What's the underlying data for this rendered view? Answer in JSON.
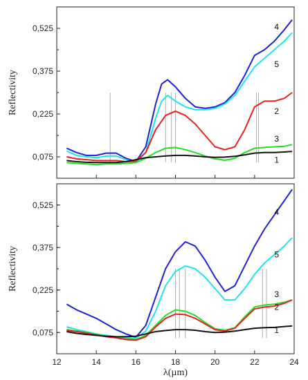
{
  "chart_data": [
    {
      "type": "line",
      "ylabel": "Reflectivity",
      "xlabel": "",
      "xlim": [
        12,
        24
      ],
      "ylim": [
        0,
        0.6
      ],
      "yticks": [
        "0,075",
        "0,225",
        "0,375",
        "0,525"
      ],
      "ytick_values": [
        0.075,
        0.225,
        0.375,
        0.525
      ],
      "xticks": [],
      "grid": false,
      "series": [
        {
          "name": "4",
          "color": "#1f1fd6",
          "x": [
            12.5,
            13,
            13.5,
            14,
            14.5,
            15,
            15.5,
            16,
            16.5,
            17,
            17.3,
            17.6,
            18,
            18.5,
            19,
            19.5,
            20,
            20.5,
            21,
            21.5,
            22,
            22.5,
            23,
            23.5,
            23.9
          ],
          "y": [
            0.105,
            0.09,
            0.08,
            0.08,
            0.088,
            0.088,
            0.07,
            0.058,
            0.11,
            0.26,
            0.33,
            0.345,
            0.32,
            0.28,
            0.25,
            0.245,
            0.25,
            0.265,
            0.3,
            0.36,
            0.43,
            0.45,
            0.48,
            0.52,
            0.555
          ]
        },
        {
          "name": "5",
          "color": "#1fe6e6",
          "x": [
            12.5,
            13,
            13.5,
            14,
            14.5,
            15,
            15.5,
            16,
            16.5,
            17,
            17.3,
            17.6,
            18,
            18.5,
            19,
            19.5,
            20,
            20.5,
            21,
            21.5,
            22,
            22.5,
            23,
            23.5,
            23.9
          ],
          "y": [
            0.095,
            0.08,
            0.075,
            0.072,
            0.078,
            0.078,
            0.065,
            0.055,
            0.09,
            0.21,
            0.27,
            0.29,
            0.27,
            0.25,
            0.24,
            0.24,
            0.245,
            0.26,
            0.29,
            0.34,
            0.39,
            0.42,
            0.45,
            0.48,
            0.51
          ]
        },
        {
          "name": "2",
          "color": "#e62020",
          "x": [
            12.5,
            13,
            13.5,
            14,
            14.5,
            15,
            15.5,
            16,
            16.5,
            17,
            17.5,
            18,
            18.5,
            19,
            19.5,
            20,
            20.5,
            21,
            21.5,
            22,
            22.5,
            23,
            23.5,
            23.9
          ],
          "y": [
            0.075,
            0.068,
            0.065,
            0.062,
            0.062,
            0.062,
            0.058,
            0.06,
            0.09,
            0.17,
            0.22,
            0.235,
            0.22,
            0.19,
            0.15,
            0.11,
            0.1,
            0.11,
            0.17,
            0.25,
            0.27,
            0.27,
            0.28,
            0.3
          ]
        },
        {
          "name": "3",
          "color": "#22dd22",
          "x": [
            12.5,
            13,
            13.5,
            14,
            14.5,
            15,
            15.5,
            16,
            16.5,
            17,
            17.5,
            18,
            18.5,
            19,
            19.5,
            20,
            20.5,
            21,
            21.5,
            22,
            22.5,
            23,
            23.5,
            23.9
          ],
          "y": [
            0.055,
            0.052,
            0.05,
            0.048,
            0.05,
            0.05,
            0.052,
            0.055,
            0.07,
            0.09,
            0.105,
            0.108,
            0.1,
            0.09,
            0.078,
            0.068,
            0.063,
            0.07,
            0.09,
            0.105,
            0.108,
            0.11,
            0.112,
            0.118
          ]
        },
        {
          "name": "1",
          "color": "#111111",
          "x": [
            12.5,
            13,
            13.5,
            14,
            14.5,
            15,
            15.5,
            16,
            16.5,
            17,
            17.5,
            18,
            18.5,
            19,
            19.5,
            20,
            20.5,
            21,
            21.5,
            22,
            22.5,
            23,
            23.5,
            23.9
          ],
          "y": [
            0.062,
            0.058,
            0.056,
            0.055,
            0.055,
            0.055,
            0.058,
            0.065,
            0.072,
            0.075,
            0.078,
            0.08,
            0.08,
            0.078,
            0.075,
            0.073,
            0.074,
            0.077,
            0.082,
            0.088,
            0.09,
            0.09,
            0.092,
            0.094
          ]
        }
      ],
      "markers": [
        14.7,
        17.5,
        17.8,
        18.0,
        22.1,
        22.2
      ],
      "label_positions": [
        {
          "name": "4",
          "x": 23.0,
          "y": 0.52
        },
        {
          "name": "5",
          "x": 23.0,
          "y": 0.39
        },
        {
          "name": "2",
          "x": 23.0,
          "y": 0.225
        },
        {
          "name": "3",
          "x": 23.0,
          "y": 0.128
        },
        {
          "name": "1",
          "x": 23.0,
          "y": 0.055
        }
      ]
    },
    {
      "type": "line",
      "ylabel": "Reflectivity",
      "xlabel": "λ(µm)",
      "xlim": [
        12,
        24
      ],
      "ylim": [
        0,
        0.6
      ],
      "yticks": [
        "0,075",
        "0,225",
        "0,375",
        "0,525"
      ],
      "ytick_values": [
        0.075,
        0.225,
        0.375,
        0.525
      ],
      "xticks": [
        "12",
        "14",
        "16",
        "18",
        "20",
        "22",
        "24"
      ],
      "xtick_values": [
        12,
        14,
        16,
        18,
        20,
        22,
        24
      ],
      "grid": false,
      "series": [
        {
          "name": "4",
          "color": "#1f1fd6",
          "x": [
            12.5,
            13,
            13.5,
            14,
            14.5,
            15,
            15.5,
            16,
            16.5,
            17,
            17.5,
            18,
            18.5,
            19,
            19.5,
            20,
            20.5,
            21,
            21.5,
            22,
            22.5,
            23,
            23.5,
            23.9
          ],
          "y": [
            0.175,
            0.155,
            0.14,
            0.125,
            0.105,
            0.085,
            0.07,
            0.058,
            0.1,
            0.2,
            0.3,
            0.36,
            0.395,
            0.38,
            0.33,
            0.27,
            0.22,
            0.24,
            0.31,
            0.38,
            0.44,
            0.49,
            0.54,
            0.58
          ]
        },
        {
          "name": "5",
          "color": "#1fe6e6",
          "x": [
            12.5,
            13,
            13.5,
            14,
            14.5,
            15,
            15.5,
            16,
            16.5,
            17,
            17.5,
            18,
            18.5,
            19,
            19.5,
            20,
            20.5,
            21,
            21.5,
            22,
            22.5,
            23,
            23.5,
            23.9
          ],
          "y": [
            0.095,
            0.085,
            0.078,
            0.07,
            0.065,
            0.06,
            0.055,
            0.055,
            0.08,
            0.15,
            0.24,
            0.29,
            0.31,
            0.3,
            0.27,
            0.23,
            0.19,
            0.19,
            0.23,
            0.28,
            0.32,
            0.35,
            0.38,
            0.41
          ]
        },
        {
          "name": "3",
          "color": "#22dd22",
          "x": [
            12.5,
            13,
            13.5,
            14,
            14.5,
            15,
            15.5,
            16,
            16.5,
            17,
            17.5,
            18,
            18.5,
            19,
            19.5,
            20,
            20.5,
            21,
            21.5,
            22,
            22.5,
            23,
            23.5,
            23.9
          ],
          "y": [
            0.085,
            0.08,
            0.075,
            0.068,
            0.062,
            0.058,
            0.052,
            0.05,
            0.065,
            0.1,
            0.135,
            0.155,
            0.15,
            0.135,
            0.11,
            0.088,
            0.083,
            0.092,
            0.13,
            0.165,
            0.172,
            0.175,
            0.182,
            0.19
          ]
        },
        {
          "name": "2",
          "color": "#e62020",
          "x": [
            12.5,
            13,
            13.5,
            14,
            14.5,
            15,
            15.5,
            16,
            16.5,
            17,
            17.5,
            18,
            18.5,
            19,
            19.5,
            20,
            20.5,
            21,
            21.5,
            22,
            22.5,
            23,
            23.5,
            23.9
          ],
          "y": [
            0.083,
            0.078,
            0.073,
            0.066,
            0.06,
            0.056,
            0.05,
            0.048,
            0.06,
            0.095,
            0.125,
            0.14,
            0.138,
            0.125,
            0.105,
            0.085,
            0.08,
            0.09,
            0.125,
            0.158,
            0.165,
            0.168,
            0.178,
            0.19
          ]
        },
        {
          "name": "1",
          "color": "#111111",
          "x": [
            12.5,
            13,
            13.5,
            14,
            14.5,
            15,
            15.5,
            16,
            16.5,
            17,
            17.5,
            18,
            18.5,
            19,
            19.5,
            20,
            20.5,
            21,
            21.5,
            22,
            22.5,
            23,
            23.5,
            23.9
          ],
          "y": [
            0.078,
            0.072,
            0.068,
            0.065,
            0.062,
            0.06,
            0.06,
            0.062,
            0.07,
            0.078,
            0.082,
            0.085,
            0.085,
            0.083,
            0.078,
            0.075,
            0.076,
            0.08,
            0.085,
            0.09,
            0.092,
            0.093,
            0.096,
            0.098
          ]
        }
      ],
      "markers": [
        18.0,
        18.2,
        18.5,
        22.4,
        22.6
      ],
      "label_positions": [
        {
          "name": "4",
          "x": 23.0,
          "y": 0.49
        },
        {
          "name": "5",
          "x": 23.0,
          "y": 0.34
        },
        {
          "name": "3",
          "x": 23.0,
          "y": 0.2
        },
        {
          "name": "2",
          "x": 23.0,
          "y": 0.155
        },
        {
          "name": "1",
          "x": 23.0,
          "y": 0.073
        }
      ]
    }
  ]
}
